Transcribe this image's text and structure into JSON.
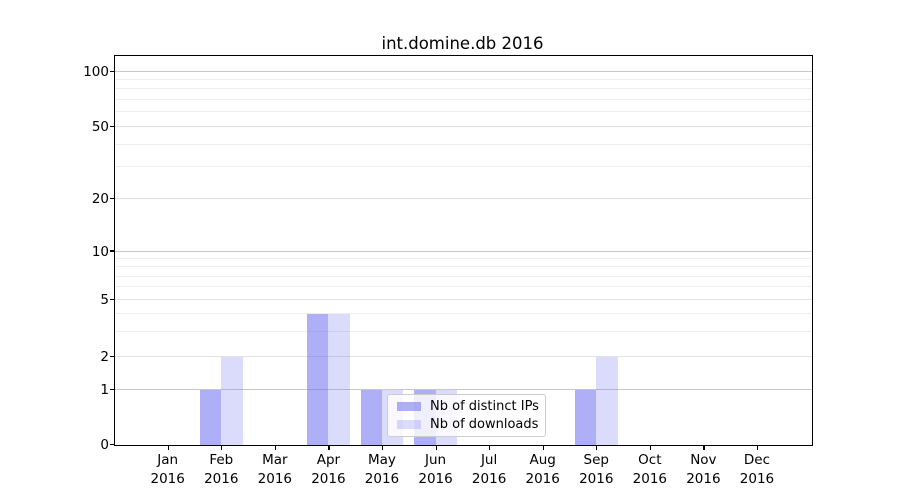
{
  "chart_data": {
    "type": "bar",
    "title": "int.domine.db 2016",
    "months": [
      "Jan",
      "Feb",
      "Mar",
      "Apr",
      "May",
      "Jun",
      "Jul",
      "Aug",
      "Sep",
      "Oct",
      "Nov",
      "Dec"
    ],
    "year": "2016",
    "series": [
      {
        "name": "Nb of distinct IPs",
        "color": "rgba(110,110,240,0.55)",
        "values": [
          0,
          1,
          0,
          4,
          1,
          1,
          0,
          0,
          1,
          0,
          0,
          0
        ]
      },
      {
        "name": "Nb of downloads",
        "color": "rgba(110,110,240,0.25)",
        "values": [
          0,
          2,
          0,
          4,
          1,
          1,
          0,
          0,
          2,
          0,
          0,
          0
        ]
      }
    ],
    "yaxis": {
      "scale": "log above 1, linear 0-1",
      "major_ticks": [
        0,
        1,
        2,
        5,
        10,
        20,
        50,
        100
      ],
      "minor_ticks": [
        3,
        4,
        6,
        7,
        8,
        9,
        30,
        40,
        60,
        70,
        80,
        90
      ],
      "top_value": 120
    },
    "colors": {
      "decade_gridline": "#c8c8c8",
      "labeled_gridline": "#e2e2e2",
      "minor_gridline": "#eeeeee",
      "spine": "#000000"
    },
    "legend_entries": [
      "Nb of distinct IPs",
      "Nb of downloads"
    ],
    "grid": true,
    "legend_position": "lower center-left inside plot"
  }
}
